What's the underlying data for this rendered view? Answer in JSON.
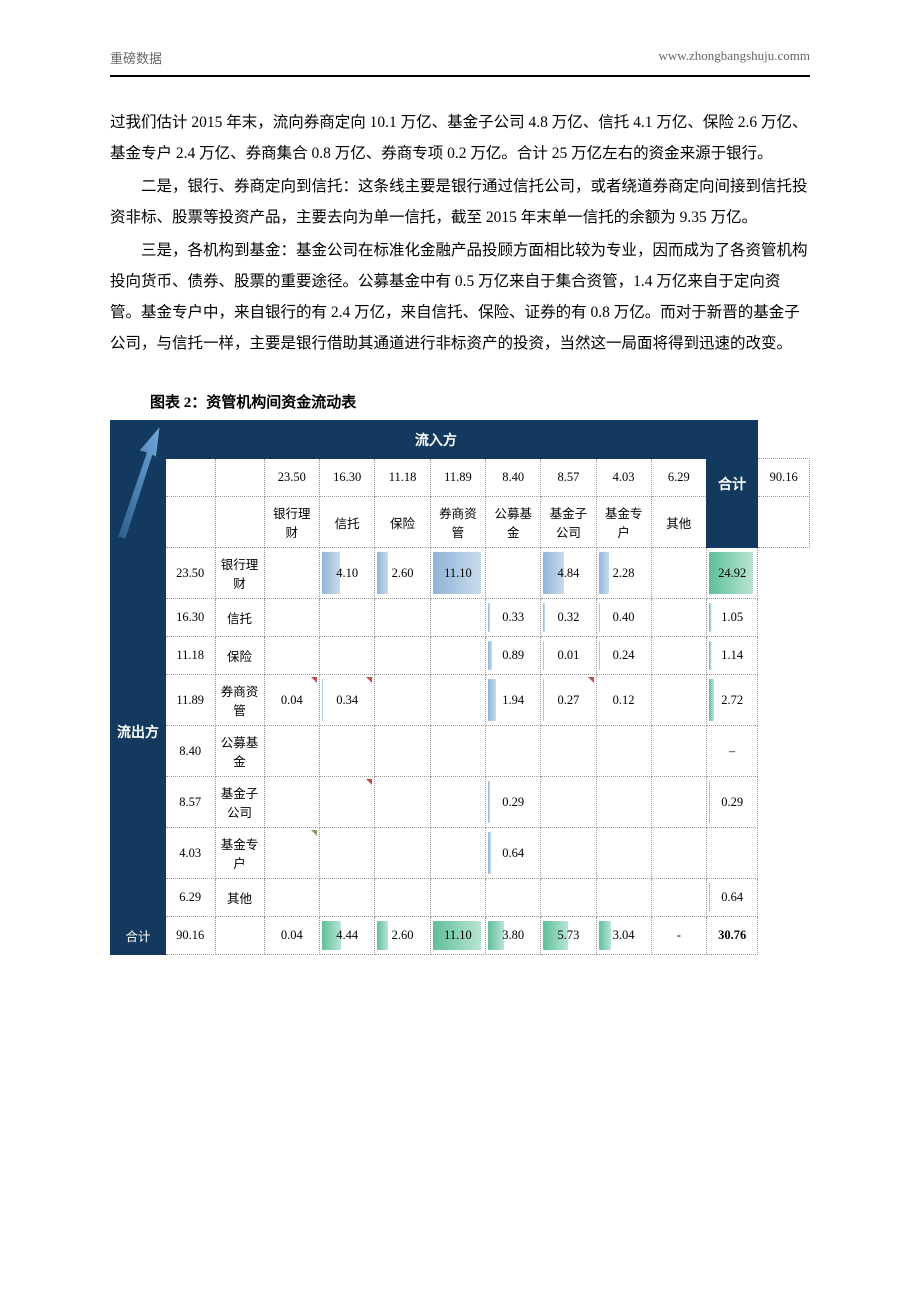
{
  "header": {
    "left": "重磅数据",
    "right": "www.zhongbangshuju.comm"
  },
  "paragraphs": {
    "p1": "过我们估计 2015 年末，流向券商定向 10.1 万亿、基金子公司 4.8 万亿、信托 4.1 万亿、保险 2.6 万亿、基金专户 2.4 万亿、券商集合 0.8 万亿、券商专项 0.2 万亿。合计 25 万亿左右的资金来源于银行。",
    "p2": "二是，银行、券商定向到信托：这条线主要是银行通过信托公司，或者绕道券商定向间接到信托投资非标、股票等投资产品，主要去向为单一信托，截至 2015 年末单一信托的余额为 9.35 万亿。",
    "p3": "三是，各机构到基金：基金公司在标准化金融产品投顾方面相比较为专业，因而成为了各资管机构投向货币、债券、股票的重要途径。公募基金中有 0.5 万亿来自于集合资管，1.4 万亿来自于定向资管。基金专户中，来自银行的有 2.4 万亿，来自信托、保险、证券的有 0.8 万亿。而对于新晋的基金子公司，与信托一样，主要是银行借助其通道进行非标资产的投资，当然这一局面将得到迅速的改变。"
  },
  "chart": {
    "title": "图表 2：资管机构间资金流动表",
    "inflow_label": "流入方",
    "outflow_label": "流出方",
    "total_label": "合计",
    "colors": {
      "header_bg": "#133a5e",
      "header_fg": "#ffffff",
      "arrow_fill": "#4a86c5",
      "bar_blue_start": "#8fb4d9",
      "bar_green_start": "#5fbf9a",
      "grid_border": "#999999"
    },
    "col_totals": [
      "23.50",
      "16.30",
      "11.18",
      "11.89",
      "8.40",
      "8.57",
      "4.03",
      "6.29"
    ],
    "grand_total_top": "90.16",
    "col_labels": [
      "银行理财",
      "信托",
      "保险",
      "券商资管",
      "公募基金",
      "基金子公司",
      "基金专户",
      "其他"
    ],
    "rows": [
      {
        "num": "23.50",
        "label": "银行理财",
        "cells": [
          "",
          "4.10",
          "2.60",
          "11.10",
          "",
          "4.84",
          "2.28",
          ""
        ],
        "bars": [
          0,
          37,
          23,
          100,
          0,
          44,
          21,
          0
        ],
        "sum": "24.92",
        "sum_bar": 100,
        "tri": [
          0,
          0,
          0,
          0,
          0,
          0,
          0,
          0
        ]
      },
      {
        "num": "16.30",
        "label": "信托",
        "cells": [
          "",
          "",
          "",
          "",
          "0.33",
          "0.32",
          "0.40",
          ""
        ],
        "bars": [
          0,
          0,
          0,
          0,
          3,
          3,
          4,
          0
        ],
        "sum": "1.05",
        "sum_bar": 4,
        "tri": [
          0,
          0,
          0,
          0,
          0,
          0,
          0,
          0
        ]
      },
      {
        "num": "11.18",
        "label": "保险",
        "cells": [
          "",
          "",
          "",
          "",
          "0.89",
          "0.01",
          "0.24",
          ""
        ],
        "bars": [
          0,
          0,
          0,
          0,
          8,
          1,
          2,
          0
        ],
        "sum": "1.14",
        "sum_bar": 5,
        "tri": [
          0,
          0,
          0,
          0,
          0,
          0,
          0,
          0
        ]
      },
      {
        "num": "11.89",
        "label": "券商资管",
        "cells": [
          "0.04",
          "0.34",
          "",
          "",
          "1.94",
          "0.27",
          "0.12",
          ""
        ],
        "bars": [
          1,
          3,
          0,
          0,
          17,
          2,
          1,
          0
        ],
        "sum": "2.72",
        "sum_bar": 11,
        "tri": [
          2,
          2,
          0,
          0,
          0,
          2,
          0,
          0
        ]
      },
      {
        "num": "8.40",
        "label": "公募基金",
        "cells": [
          "",
          "",
          "",
          "",
          "",
          "",
          "",
          ""
        ],
        "bars": [
          0,
          0,
          0,
          0,
          0,
          0,
          0,
          0
        ],
        "sum": "–",
        "sum_bar": 0,
        "tri": [
          0,
          0,
          0,
          0,
          0,
          0,
          0,
          0
        ]
      },
      {
        "num": "8.57",
        "label": "基金子公司",
        "cells": [
          "",
          "",
          "",
          "",
          "0.29",
          "",
          "",
          ""
        ],
        "bars": [
          0,
          0,
          0,
          0,
          3,
          0,
          0,
          0
        ],
        "sum": "0.29",
        "sum_bar": 1,
        "tri": [
          0,
          2,
          0,
          0,
          0,
          0,
          0,
          0
        ]
      },
      {
        "num": "4.03",
        "label": "基金专户",
        "cells": [
          "",
          "",
          "",
          "",
          "0.64",
          "",
          "",
          ""
        ],
        "bars": [
          0,
          0,
          0,
          0,
          6,
          0,
          0,
          0
        ],
        "sum": "",
        "sum_bar": 0,
        "tri": [
          1,
          0,
          0,
          0,
          0,
          0,
          0,
          0
        ]
      },
      {
        "num": "6.29",
        "label": "其他",
        "cells": [
          "",
          "",
          "",
          "",
          "",
          "",
          "",
          ""
        ],
        "bars": [
          0,
          0,
          0,
          0,
          0,
          0,
          0,
          0
        ],
        "sum": "0.64",
        "sum_bar": 3,
        "tri": [
          0,
          0,
          0,
          0,
          0,
          0,
          0,
          0
        ]
      }
    ],
    "bottom_totals": {
      "num": "90.16",
      "cells": [
        "0.04",
        "4.44",
        "2.60",
        "11.10",
        "3.80",
        "5.73",
        "3.04",
        "-"
      ],
      "bars": [
        1,
        40,
        23,
        100,
        34,
        52,
        27,
        0
      ],
      "sum": "30.76"
    }
  }
}
